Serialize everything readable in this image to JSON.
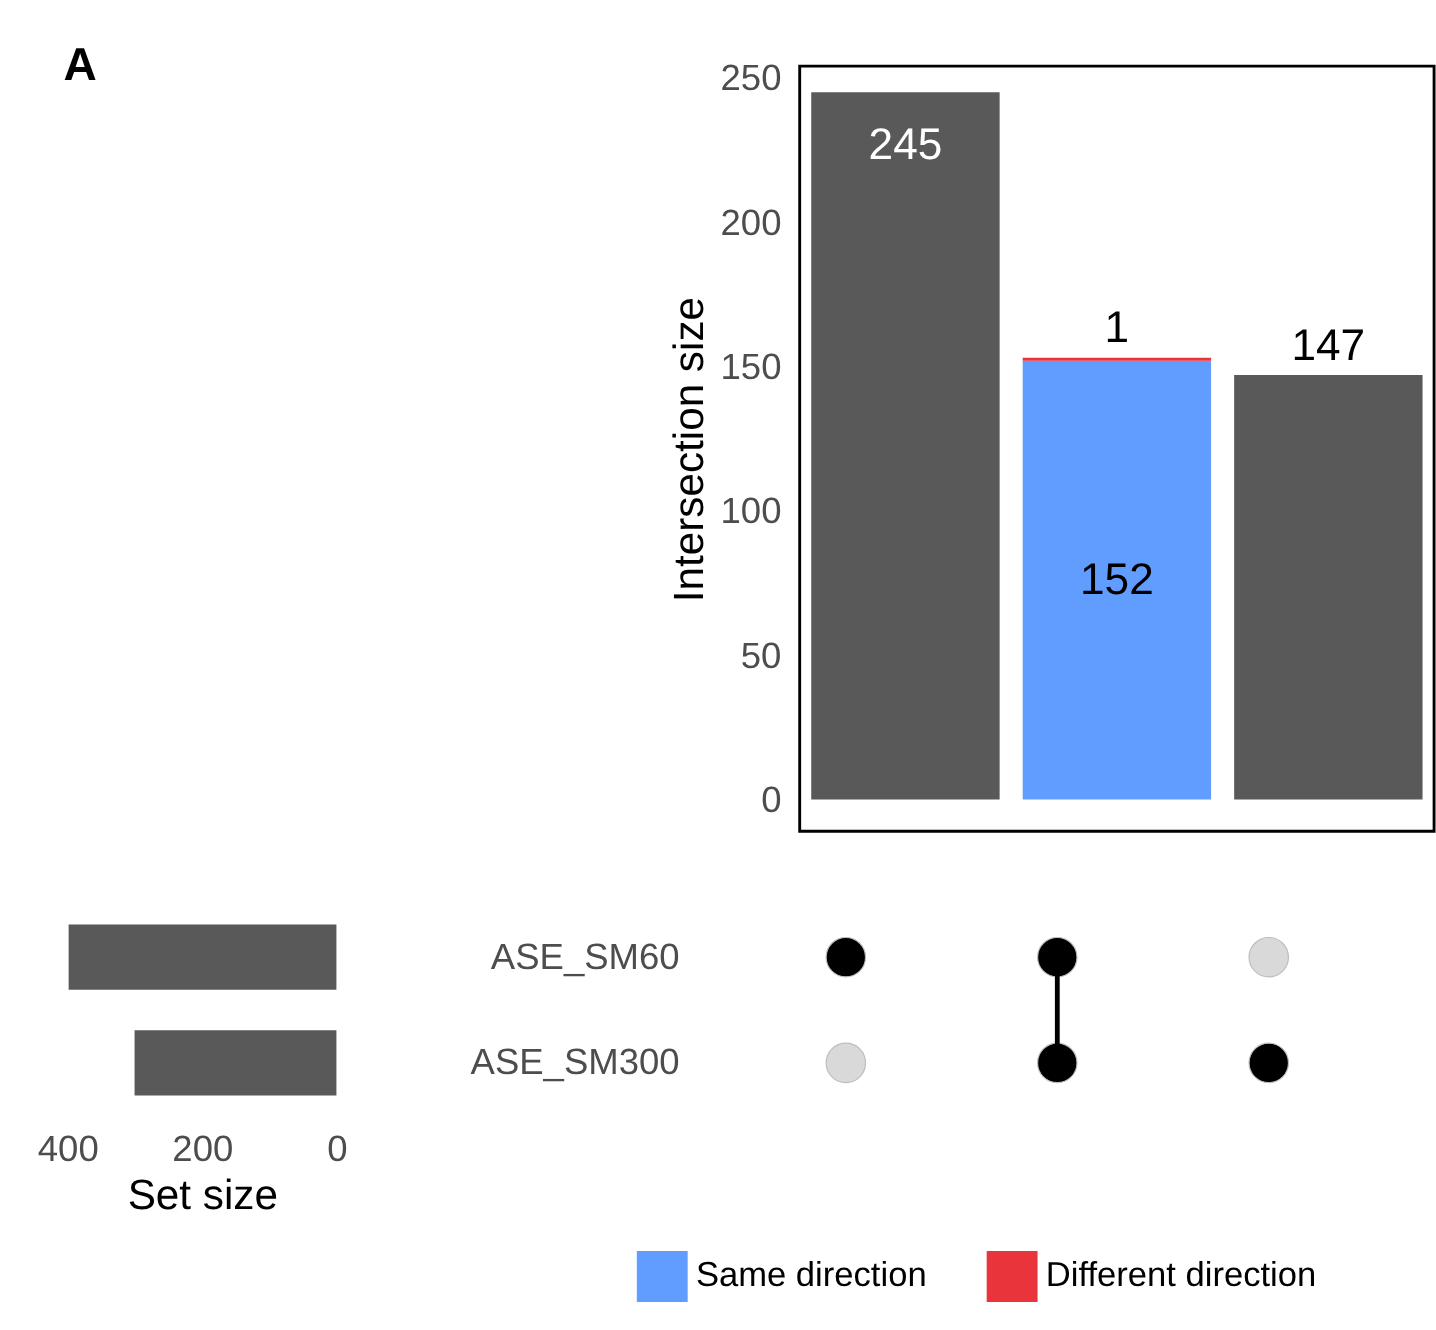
{
  "chart_data": [
    {
      "type": "bar",
      "annotations": [
        "A"
      ],
      "ylabel": "Intersection size",
      "categories": [
        null,
        null,
        null
      ],
      "stacked": true,
      "series": [
        {
          "color": "#595959",
          "values": [
            245,
            null,
            147
          ]
        },
        {
          "name": "Same direction",
          "color": "#619cff",
          "values": [
            null,
            152,
            null
          ]
        },
        {
          "name": "Different direction",
          "color": "#e8343a",
          "values": [
            null,
            1,
            null
          ]
        }
      ],
      "ylim": [
        -11,
        254
      ],
      "yticks": [
        0,
        50,
        100,
        150,
        200,
        250
      ],
      "tick_labels": "y",
      "data_labels": true,
      "legend": "bottom",
      "grid": false
    },
    {
      "type": "bar",
      "orientation": "horizontal",
      "categories": [
        "ASE_SM60",
        "ASE_SM300"
      ],
      "values": [
        398,
        300
      ],
      "color": "#595959",
      "xlim": [
        400,
        0
      ],
      "xticks": [
        400,
        200,
        0
      ],
      "xlabel": "Set size",
      "grid": false
    },
    {
      "type": "other",
      "categories": [
        null,
        null,
        null
      ],
      "cells": [
        [
          true,
          true,
          false
        ],
        [
          false,
          true,
          true
        ]
      ],
      "colors": [
        "#d9d9d9",
        "#000000"
      ]
    }
  ]
}
